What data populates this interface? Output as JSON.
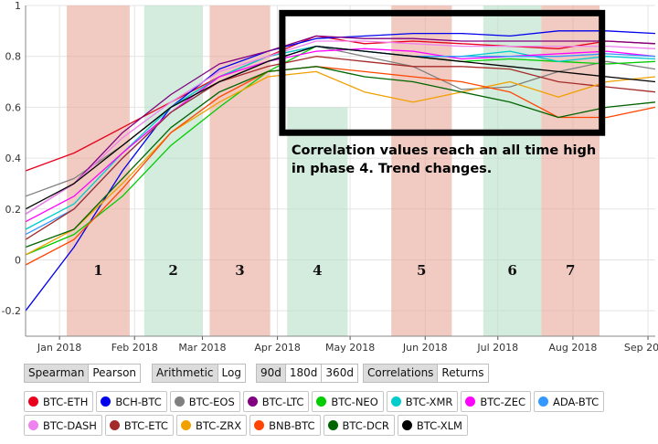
{
  "chart_data": {
    "type": "line",
    "title": "",
    "xlabel": "",
    "ylabel": "",
    "ylim": [
      -0.3,
      1.0
    ],
    "yticks": [
      -0.2,
      0,
      0.2,
      0.4,
      0.6,
      0.8,
      1
    ],
    "ytick_labels": [
      "-0.2",
      "0",
      "0.2",
      "0.4",
      "0.6",
      "0.8",
      "1"
    ],
    "xlim": [
      0,
      260
    ],
    "xticks": [
      {
        "label": "Jan 2018",
        "x": 14
      },
      {
        "label": "Feb 2018",
        "x": 45
      },
      {
        "label": "Mar 2018",
        "x": 73
      },
      {
        "label": "Apr 2018",
        "x": 104
      },
      {
        "label": "May 2018",
        "x": 134
      },
      {
        "label": "Jun 2018",
        "x": 165
      },
      {
        "label": "Jul 2018",
        "x": 195
      },
      {
        "label": "Aug 2018",
        "x": 226
      },
      {
        "label": "Sep 2018",
        "x": 257
      }
    ],
    "phases": [
      {
        "label": "1",
        "x_start": 17,
        "x_end": 43,
        "color": "#e8a898",
        "y_top": 1.0
      },
      {
        "label": "2",
        "x_start": 49,
        "x_end": 73,
        "color": "#b8e0c6",
        "y_top": 1.0
      },
      {
        "label": "3",
        "x_start": 76,
        "x_end": 101,
        "color": "#e8a898",
        "y_top": 1.0
      },
      {
        "label": "4",
        "x_start": 108,
        "x_end": 133,
        "color": "#b8e0c6",
        "y_top": 0.6
      },
      {
        "label": "5",
        "x_start": 151,
        "x_end": 176,
        "color": "#e8a898",
        "y_top": 1.0
      },
      {
        "label": "6",
        "x_start": 189,
        "x_end": 213,
        "color": "#b8e0c6",
        "y_top": 1.0
      },
      {
        "label": "7",
        "x_start": 213,
        "x_end": 237,
        "color": "#e8a898",
        "y_top": 1.0
      }
    ],
    "annotation": {
      "lines": [
        "Correlation values reach an all time high",
        "in phase 4. Trend changes."
      ],
      "box_x": [
        106,
        238
      ],
      "box_y": [
        0.5,
        0.97
      ]
    },
    "series": [
      {
        "name": "BTC-ETH",
        "color": "#e8001c",
        "x": [
          0,
          20,
          40,
          60,
          80,
          100,
          120,
          140,
          160,
          180,
          200,
          220,
          240,
          260
        ],
        "y": [
          0.35,
          0.42,
          0.52,
          0.62,
          0.72,
          0.8,
          0.88,
          0.85,
          0.86,
          0.85,
          0.84,
          0.83,
          0.86,
          0.85
        ]
      },
      {
        "name": "BCH-BTC",
        "color": "#0000ee",
        "x": [
          0,
          20,
          40,
          60,
          80,
          100,
          120,
          140,
          160,
          180,
          200,
          220,
          240,
          260
        ],
        "y": [
          -0.2,
          0.05,
          0.35,
          0.6,
          0.75,
          0.82,
          0.87,
          0.88,
          0.89,
          0.89,
          0.88,
          0.9,
          0.9,
          0.89
        ]
      },
      {
        "name": "BTC-EOS",
        "color": "#7f7f7f",
        "x": [
          0,
          20,
          40,
          60,
          80,
          100,
          120,
          140,
          160,
          180,
          200,
          220,
          240,
          260
        ],
        "y": [
          0.25,
          0.32,
          0.45,
          0.6,
          0.72,
          0.8,
          0.84,
          0.8,
          0.76,
          0.67,
          0.68,
          0.74,
          0.78,
          0.75
        ]
      },
      {
        "name": "BTC-LTC",
        "color": "#800080",
        "x": [
          0,
          20,
          40,
          60,
          80,
          100,
          120,
          140,
          160,
          180,
          200,
          220,
          240,
          260
        ],
        "y": [
          0.18,
          0.3,
          0.5,
          0.65,
          0.77,
          0.82,
          0.88,
          0.87,
          0.87,
          0.86,
          0.86,
          0.86,
          0.86,
          0.85
        ]
      },
      {
        "name": "BTC-NEO",
        "color": "#00cc00",
        "x": [
          0,
          20,
          40,
          60,
          80,
          100,
          120,
          140,
          160,
          180,
          200,
          220,
          240,
          260
        ],
        "y": [
          0.02,
          0.1,
          0.25,
          0.45,
          0.6,
          0.74,
          0.84,
          0.82,
          0.8,
          0.78,
          0.79,
          0.78,
          0.77,
          0.78
        ]
      },
      {
        "name": "BTC-XMR",
        "color": "#00cccc",
        "x": [
          0,
          20,
          40,
          60,
          80,
          100,
          120,
          140,
          160,
          180,
          200,
          220,
          240,
          260
        ],
        "y": [
          0.12,
          0.22,
          0.42,
          0.6,
          0.72,
          0.8,
          0.84,
          0.82,
          0.8,
          0.8,
          0.82,
          0.78,
          0.8,
          0.79
        ]
      },
      {
        "name": "BTC-ZEC",
        "color": "#ff00ff",
        "x": [
          0,
          20,
          40,
          60,
          80,
          100,
          120,
          140,
          160,
          180,
          200,
          220,
          240,
          260
        ],
        "y": [
          0.15,
          0.25,
          0.42,
          0.58,
          0.72,
          0.78,
          0.82,
          0.83,
          0.82,
          0.79,
          0.8,
          0.81,
          0.82,
          0.8
        ]
      },
      {
        "name": "ADA-BTC",
        "color": "#3399ff",
        "x": [
          0,
          20,
          40,
          60,
          80,
          100,
          120,
          140,
          160,
          180,
          200,
          220,
          240,
          260
        ],
        "y": [
          0.1,
          0.2,
          0.4,
          0.58,
          0.7,
          0.78,
          0.84,
          0.82,
          0.8,
          0.8,
          0.8,
          0.8,
          0.81,
          0.8
        ]
      },
      {
        "name": "BTC-DASH",
        "color": "#ee82ee",
        "x": [
          0,
          20,
          40,
          60,
          80,
          100,
          120,
          140,
          160,
          180,
          200,
          220,
          240,
          260
        ],
        "y": [
          0.18,
          0.3,
          0.48,
          0.62,
          0.74,
          0.8,
          0.86,
          0.86,
          0.85,
          0.84,
          0.84,
          0.84,
          0.84,
          0.83
        ]
      },
      {
        "name": "BTC-ETC",
        "color": "#a52a2a",
        "x": [
          0,
          20,
          40,
          60,
          80,
          100,
          120,
          140,
          160,
          180,
          200,
          220,
          240,
          260
        ],
        "y": [
          0.08,
          0.2,
          0.4,
          0.58,
          0.7,
          0.76,
          0.8,
          0.78,
          0.76,
          0.76,
          0.75,
          0.7,
          0.68,
          0.66
        ]
      },
      {
        "name": "BTC-ZRX",
        "color": "#f0a000",
        "x": [
          0,
          20,
          40,
          60,
          80,
          100,
          120,
          140,
          160,
          180,
          200,
          220,
          240,
          260
        ],
        "y": [
          0.02,
          0.12,
          0.3,
          0.5,
          0.62,
          0.72,
          0.74,
          0.66,
          0.62,
          0.66,
          0.7,
          0.64,
          0.7,
          0.72
        ]
      },
      {
        "name": "BNB-BTC",
        "color": "#ff4500",
        "x": [
          0,
          20,
          40,
          60,
          80,
          100,
          120,
          140,
          160,
          180,
          200,
          220,
          240,
          260
        ],
        "y": [
          -0.02,
          0.08,
          0.28,
          0.5,
          0.64,
          0.74,
          0.76,
          0.74,
          0.72,
          0.7,
          0.66,
          0.56,
          0.56,
          0.6
        ]
      },
      {
        "name": "BTC-DCR",
        "color": "#006400",
        "x": [
          0,
          20,
          40,
          60,
          80,
          100,
          120,
          140,
          160,
          180,
          200,
          220,
          240,
          260
        ],
        "y": [
          0.05,
          0.12,
          0.32,
          0.52,
          0.66,
          0.74,
          0.76,
          0.72,
          0.7,
          0.66,
          0.62,
          0.56,
          0.6,
          0.62
        ]
      },
      {
        "name": "BTC-XLM",
        "color": "#000000",
        "x": [
          0,
          20,
          40,
          60,
          80,
          100,
          120,
          140,
          160,
          180,
          200,
          220,
          240,
          260
        ],
        "y": [
          0.2,
          0.3,
          0.45,
          0.6,
          0.7,
          0.78,
          0.84,
          0.82,
          0.8,
          0.78,
          0.76,
          0.74,
          0.72,
          0.7
        ]
      }
    ]
  },
  "controls": {
    "method": [
      "Spearman",
      "Pearson"
    ],
    "scale": [
      "Arithmetic",
      "Log"
    ],
    "window": [
      "90d",
      "180d",
      "360d"
    ],
    "view": [
      "Correlations",
      "Returns"
    ]
  }
}
